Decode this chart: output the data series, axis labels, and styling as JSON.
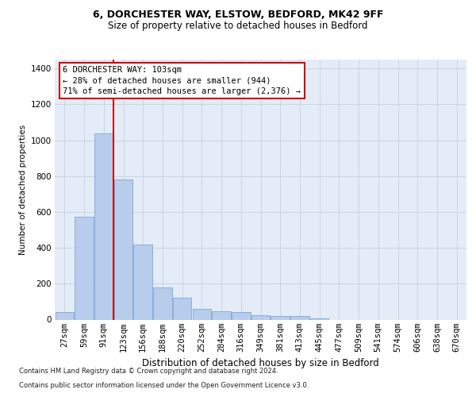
{
  "title1": "6, DORCHESTER WAY, ELSTOW, BEDFORD, MK42 9FF",
  "title2": "Size of property relative to detached houses in Bedford",
  "xlabel": "Distribution of detached houses by size in Bedford",
  "ylabel": "Number of detached properties",
  "categories": [
    "27sqm",
    "59sqm",
    "91sqm",
    "123sqm",
    "156sqm",
    "188sqm",
    "220sqm",
    "252sqm",
    "284sqm",
    "316sqm",
    "349sqm",
    "381sqm",
    "413sqm",
    "445sqm",
    "477sqm",
    "509sqm",
    "541sqm",
    "574sqm",
    "606sqm",
    "638sqm",
    "670sqm"
  ],
  "values": [
    40,
    575,
    1040,
    780,
    420,
    178,
    120,
    58,
    45,
    40,
    25,
    22,
    18,
    8,
    0,
    0,
    0,
    0,
    0,
    0,
    0
  ],
  "bar_color": "#b8cceb",
  "bar_edge_color": "#6a9fd4",
  "grid_color": "#c8d4e8",
  "vline_position": 2.5,
  "vline_color": "#cc0000",
  "annotation_text": "6 DORCHESTER WAY: 103sqm\n← 28% of detached houses are smaller (944)\n71% of semi-detached houses are larger (2,376) →",
  "annotation_box_facecolor": "#ffffff",
  "annotation_box_edgecolor": "#cc0000",
  "footnote_line1": "Contains HM Land Registry data © Crown copyright and database right 2024.",
  "footnote_line2": "Contains public sector information licensed under the Open Government Licence v3.0.",
  "ylim": [
    0,
    1450
  ],
  "yticks": [
    0,
    200,
    400,
    600,
    800,
    1000,
    1200,
    1400
  ],
  "bg_color": "#e4ecf7",
  "title1_fontsize": 9,
  "title2_fontsize": 8.5,
  "xlabel_fontsize": 8.5,
  "ylabel_fontsize": 7.5,
  "tick_fontsize": 7.5,
  "annot_fontsize": 7.5,
  "footnote_fontsize": 6
}
